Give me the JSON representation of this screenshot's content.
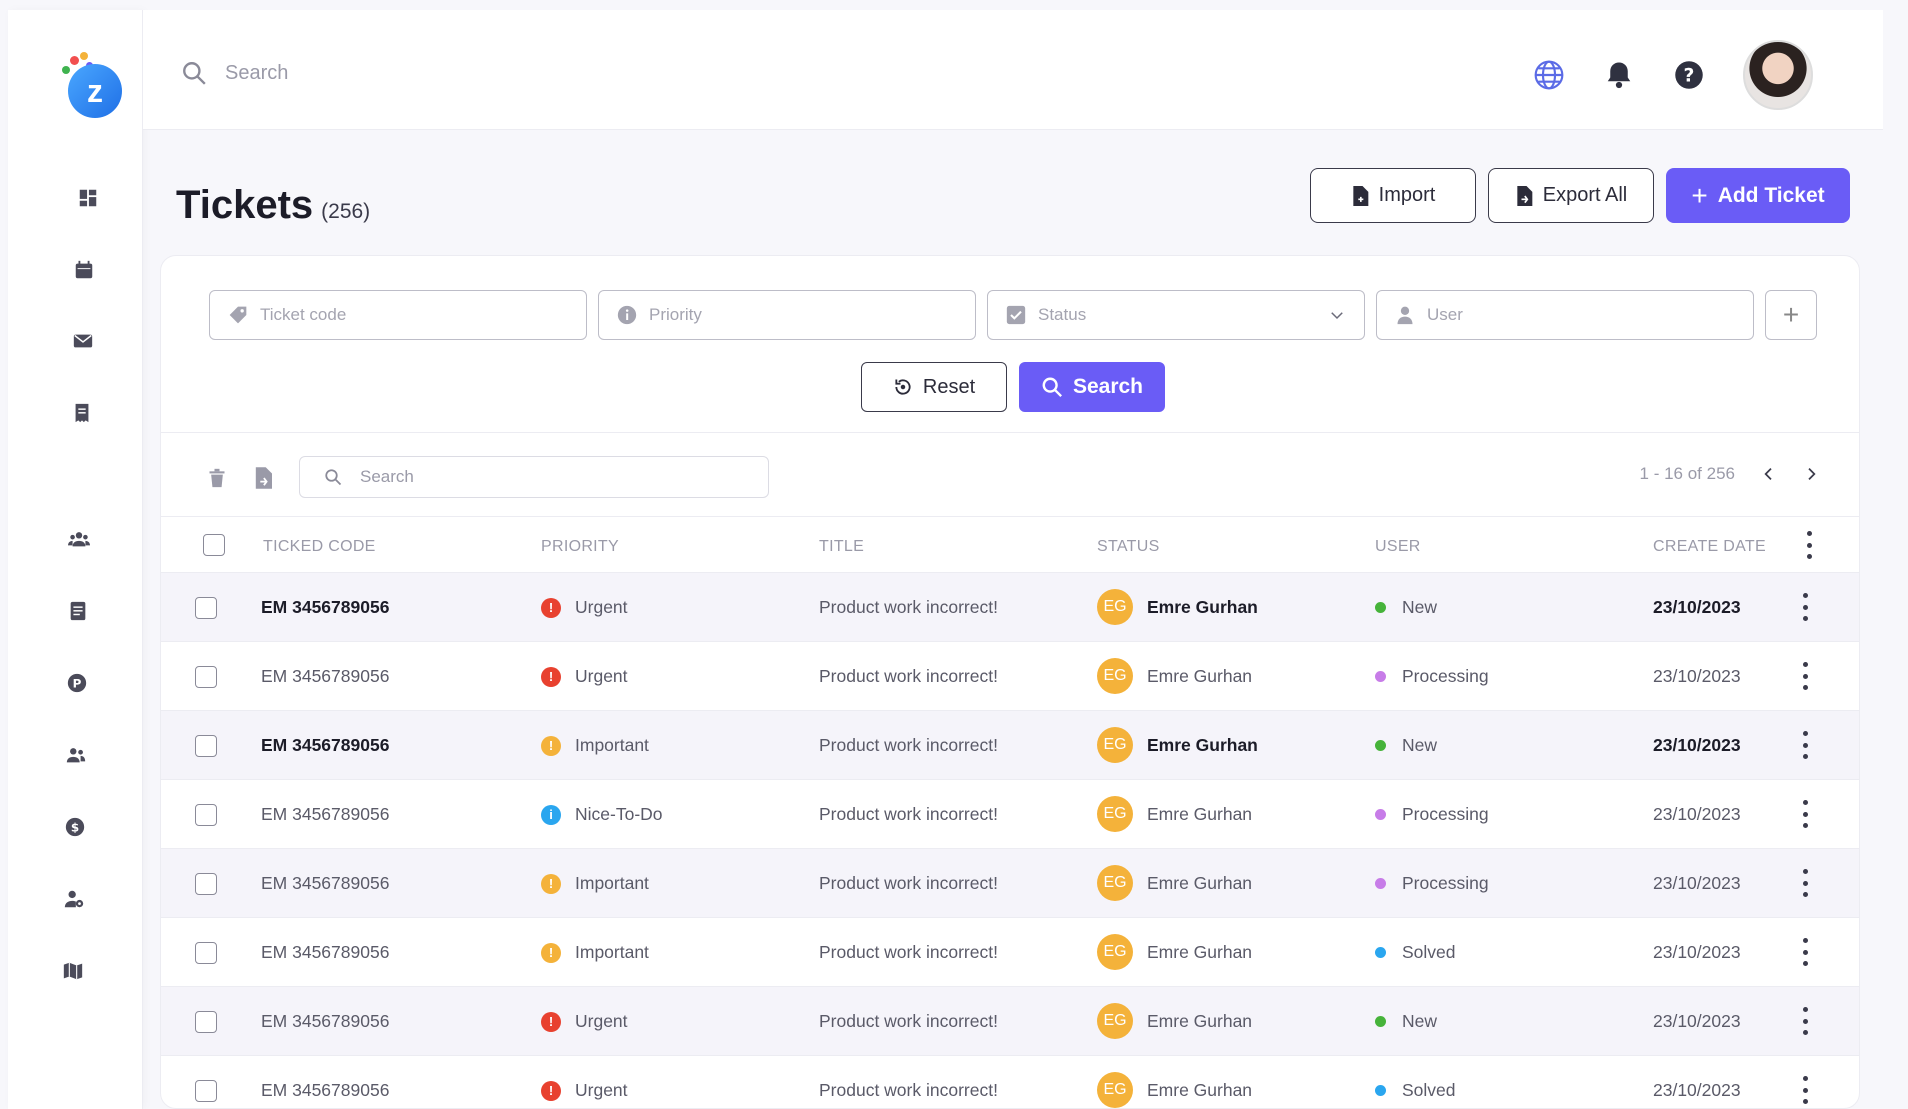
{
  "topbar": {
    "search_placeholder": "Search"
  },
  "header": {
    "title": "Tickets",
    "count": "(256)"
  },
  "actions": {
    "import": "Import",
    "export_all": "Export All",
    "add_ticket": "Add Ticket"
  },
  "filters": {
    "ticket_code": "Ticket code",
    "priority": "Priority",
    "status": "Status",
    "user": "User",
    "reset": "Reset",
    "search": "Search"
  },
  "table_toolbar": {
    "search_placeholder": "Search",
    "pagination": "1 - 16 of 256"
  },
  "columns": [
    "TICKED CODE",
    "PRIORITY",
    "TITLE",
    "STATUS",
    "USER",
    "CREATE DATE"
  ],
  "colors": {
    "accent": "#6a5cf6",
    "urgent": "#e8412f",
    "important": "#f4b23a",
    "nice": "#2aa6ef",
    "new": "#46b33a",
    "processing": "#c77ce8",
    "solved": "#2aa6ef",
    "avatar": "#f4b23a"
  },
  "rows": [
    {
      "code": "EM 3456789056",
      "priority": "Urgent",
      "title": "Product work incorrect!",
      "initials": "EG",
      "name": "Emre Gurhan",
      "state": "New",
      "date": "23/10/2023"
    },
    {
      "code": "EM 3456789056",
      "priority": "Urgent",
      "title": "Product work incorrect!",
      "initials": "EG",
      "name": "Emre Gurhan",
      "state": "Processing",
      "date": "23/10/2023"
    },
    {
      "code": "EM 3456789056",
      "priority": "Important",
      "title": "Product work incorrect!",
      "initials": "EG",
      "name": "Emre Gurhan",
      "state": "New",
      "date": "23/10/2023"
    },
    {
      "code": "EM 3456789056",
      "priority": "Nice-To-Do",
      "title": "Product work incorrect!",
      "initials": "EG",
      "name": "Emre Gurhan",
      "state": "Processing",
      "date": "23/10/2023"
    },
    {
      "code": "EM 3456789056",
      "priority": "Important",
      "title": "Product work incorrect!",
      "initials": "EG",
      "name": "Emre Gurhan",
      "state": "Processing",
      "date": "23/10/2023"
    },
    {
      "code": "EM 3456789056",
      "priority": "Important",
      "title": "Product work incorrect!",
      "initials": "EG",
      "name": "Emre Gurhan",
      "state": "Solved",
      "date": "23/10/2023"
    },
    {
      "code": "EM 3456789056",
      "priority": "Urgent",
      "title": "Product work incorrect!",
      "initials": "EG",
      "name": "Emre Gurhan",
      "state": "New",
      "date": "23/10/2023"
    },
    {
      "code": "EM 3456789056",
      "priority": "Urgent",
      "title": "Product work incorrect!",
      "initials": "EG",
      "name": "Emre Gurhan",
      "state": "Solved",
      "date": "23/10/2023"
    }
  ]
}
